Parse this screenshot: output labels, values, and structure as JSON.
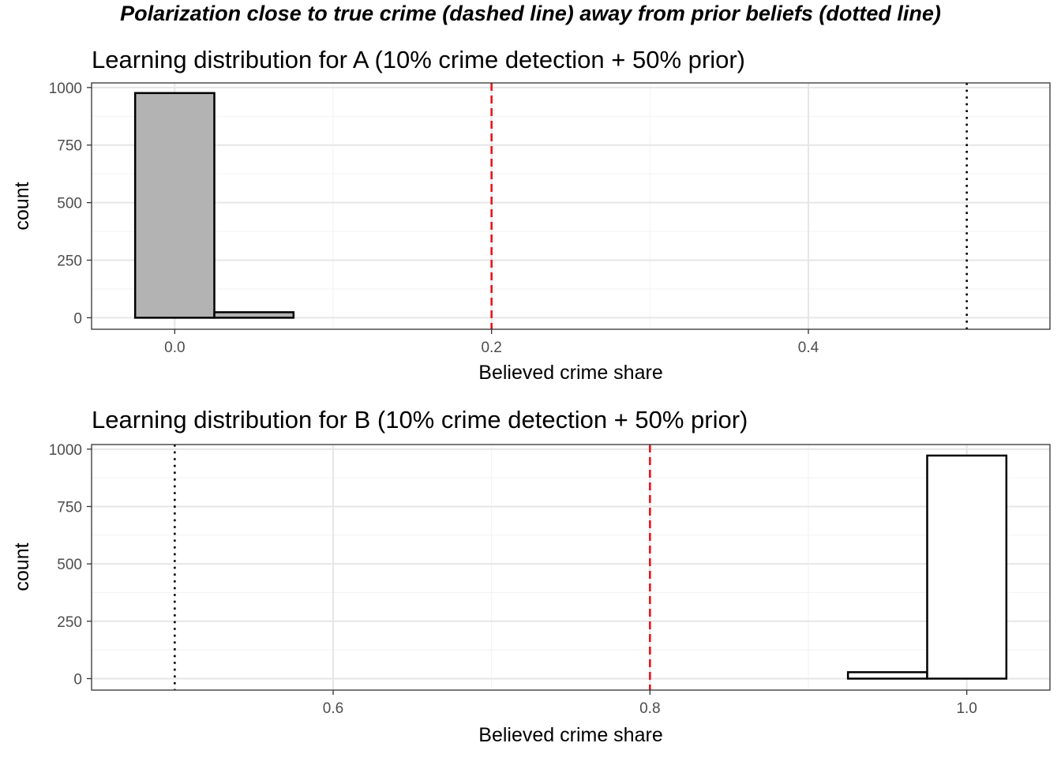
{
  "title": "Polarization close to true crime (dashed line) away from prior beliefs (dotted line)",
  "colors": {
    "dashed_line": "#e8141c",
    "dotted_line": "#000000",
    "bar_fill_A": "#b3b3b3",
    "bar_fill_B": "#ffffff",
    "bar_stroke": "#000000",
    "grid_major": "#e6e6e6",
    "grid_minor": "#f2f2f2"
  },
  "chart_data": [
    {
      "type": "bar",
      "title": "Learning distribution for A (10% crime detection + 50% prior)",
      "xlabel": "Believed crime share",
      "ylabel": "count",
      "xlim": [
        -0.0525,
        0.5525
      ],
      "ylim": [
        -50,
        1020
      ],
      "xticks": [
        0.0,
        0.2,
        0.4
      ],
      "xtick_labels": [
        "0.0",
        "0.2",
        "0.4"
      ],
      "yticks": [
        0,
        250,
        500,
        750,
        1000
      ],
      "ytick_labels": [
        "0",
        "250",
        "500",
        "750",
        "1000"
      ],
      "bin_width": 0.05,
      "bins": [
        {
          "x": 0.0,
          "count": 976
        },
        {
          "x": 0.05,
          "count": 24
        },
        {
          "x": 0.1,
          "count": 0
        },
        {
          "x": 0.15,
          "count": 0
        },
        {
          "x": 0.2,
          "count": 0
        },
        {
          "x": 0.25,
          "count": 0
        },
        {
          "x": 0.3,
          "count": 0
        },
        {
          "x": 0.35,
          "count": 0
        },
        {
          "x": 0.4,
          "count": 0
        },
        {
          "x": 0.45,
          "count": 0
        },
        {
          "x": 0.5,
          "count": 0
        }
      ],
      "dashed_line_x": 0.2,
      "dotted_line_x": 0.5,
      "grid": true
    },
    {
      "type": "bar",
      "title": "Learning distribution for B (10% crime detection + 50% prior)",
      "xlabel": "Believed crime share",
      "ylabel": "count",
      "xlim": [
        0.4475,
        1.0525
      ],
      "ylim": [
        -50,
        1020
      ],
      "xticks": [
        0.6,
        0.8,
        1.0
      ],
      "xtick_labels": [
        "0.6",
        "0.8",
        "1.0"
      ],
      "yticks": [
        0,
        250,
        500,
        750,
        1000
      ],
      "ytick_labels": [
        "0",
        "250",
        "500",
        "750",
        "1000"
      ],
      "bin_width": 0.05,
      "bins": [
        {
          "x": 0.5,
          "count": 0
        },
        {
          "x": 0.55,
          "count": 0
        },
        {
          "x": 0.6,
          "count": 0
        },
        {
          "x": 0.65,
          "count": 0
        },
        {
          "x": 0.7,
          "count": 0
        },
        {
          "x": 0.75,
          "count": 0
        },
        {
          "x": 0.8,
          "count": 0
        },
        {
          "x": 0.85,
          "count": 0
        },
        {
          "x": 0.9,
          "count": 0
        },
        {
          "x": 0.95,
          "count": 28
        },
        {
          "x": 1.0,
          "count": 972
        }
      ],
      "dashed_line_x": 0.8,
      "dotted_line_x": 0.5,
      "grid": true
    }
  ]
}
